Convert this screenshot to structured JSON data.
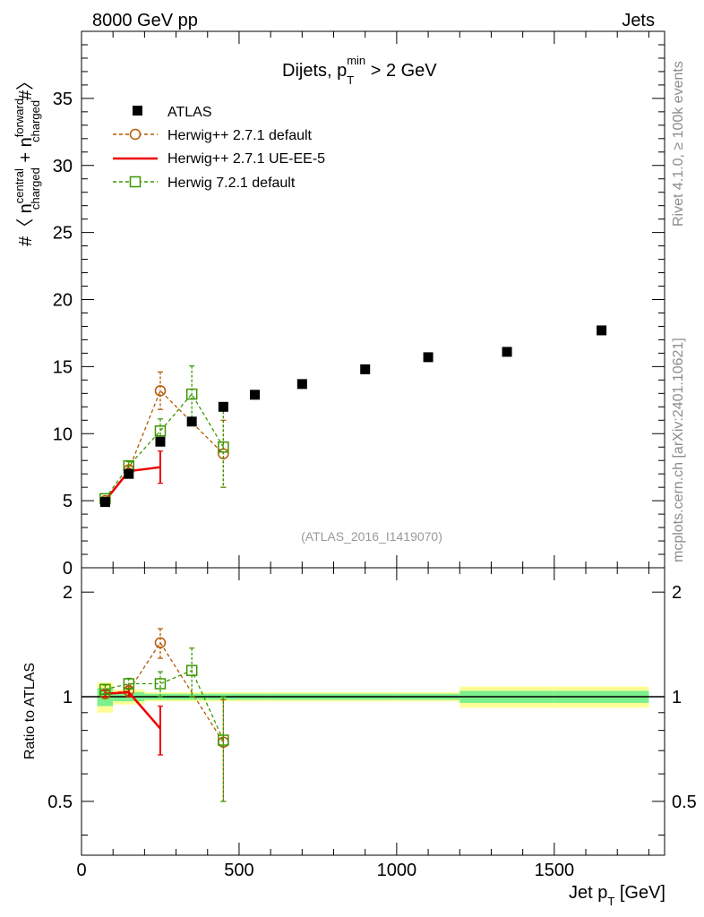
{
  "header": {
    "left": "8000 GeV pp",
    "right": "Jets"
  },
  "side_texts": {
    "rivet": "Rivet 4.1.0, ≥ 100k events",
    "mcplots": "mcplots.cern.ch [arXiv:2401.10621]"
  },
  "chart_data": {
    "type": "scatter",
    "title": "Dijets, p",
    "title_sub": "T",
    "title_sup": "min",
    "title_rest": " > 2 GeV",
    "watermark": "(ATLAS_2016_I1419070)",
    "ylabel_main": {
      "prefix": "#〈 n",
      "central_sup": "central",
      "central_sub": "charged",
      "plus": " + n",
      "forward_sup": "forward",
      "forward_sub": "charged",
      "suffix": "#〉"
    },
    "ylabel_ratio": "Ratio to ATLAS",
    "xlabel": "Jet p",
    "xlabel_sub": "T",
    "xlabel_rest": " [GeV]",
    "xlim": [
      0,
      1850
    ],
    "ylim_main": [
      0,
      40
    ],
    "ylim_ratio": [
      0.35,
      2.35
    ],
    "x_ticks": [
      "0",
      "500",
      "1000",
      "1500"
    ],
    "y_ticks_main": [
      "5",
      "10",
      "15",
      "20",
      "25",
      "30",
      "35"
    ],
    "y_ticks_ratio": [
      "0.5",
      "1",
      "2"
    ],
    "legend": {
      "atlas": "ATLAS",
      "herwigpp_default": "Herwig++ 2.7.1 default",
      "herwigpp_ueee5": "Herwig++ 2.7.1 UE-EE-5",
      "herwig7_default": "Herwig 7.2.1 default"
    },
    "colors": {
      "data": "#000000",
      "herwigpp_default": "#b35900",
      "herwigpp_ueee5": "#ee0000",
      "herwig7_default": "#3c9600",
      "band_inner": "#7cf08d",
      "band_outer": "#fdfd96"
    },
    "series": [
      {
        "name": "ATLAS",
        "x": [
          75,
          150,
          250,
          350,
          450,
          550,
          700,
          900,
          1100,
          1350,
          1650
        ],
        "y": [
          4.9,
          7.0,
          9.4,
          10.9,
          12.0,
          12.9,
          13.7,
          14.8,
          15.7,
          16.1,
          17.7
        ]
      },
      {
        "name": "Herwig++ 2.7.1 default",
        "x": [
          75,
          150,
          250,
          450
        ],
        "y": [
          5.0,
          7.3,
          13.2,
          8.5
        ],
        "err": [
          0.1,
          0.3,
          1.4,
          2.5
        ],
        "ratio": [
          1.02,
          1.04,
          1.43,
          0.74
        ],
        "ratio_err": [
          0.03,
          0.04,
          0.14,
          0.24
        ]
      },
      {
        "name": "Herwig++ 2.7.1 UE-EE-5",
        "x": [
          75,
          150,
          250
        ],
        "y": [
          5.0,
          7.2,
          7.5
        ],
        "err": [
          0.1,
          0.2,
          1.2
        ],
        "ratio": [
          1.02,
          1.03,
          0.81
        ],
        "ratio_err": [
          0.02,
          0.03,
          0.13
        ]
      },
      {
        "name": "Herwig 7.2.1 default",
        "x": [
          75,
          150,
          250,
          350,
          450
        ],
        "y": [
          5.15,
          7.6,
          10.2,
          12.95,
          9.0
        ],
        "err": [
          0.1,
          0.3,
          0.9,
          2.1,
          3.0
        ],
        "ratio": [
          1.05,
          1.09,
          1.09,
          1.19,
          0.75
        ],
        "ratio_err": [
          0.03,
          0.04,
          0.09,
          0.19,
          0.25
        ]
      }
    ],
    "uncertainty_band": {
      "edges": [
        50,
        100,
        200,
        300,
        400,
        500,
        600,
        800,
        1000,
        1200,
        1500,
        1800
      ],
      "inner": [
        0.06,
        0.03,
        0.02,
        0.02,
        0.02,
        0.02,
        0.02,
        0.02,
        0.02,
        0.04,
        0.04
      ],
      "outer": [
        0.1,
        0.05,
        0.03,
        0.03,
        0.03,
        0.03,
        0.03,
        0.03,
        0.03,
        0.07,
        0.07
      ]
    }
  }
}
